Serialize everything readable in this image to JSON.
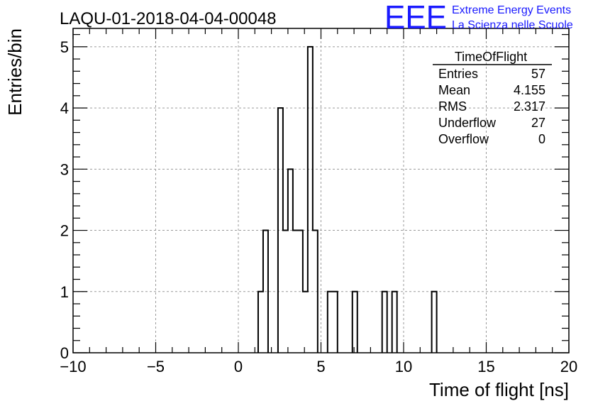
{
  "chart_data": {
    "type": "bar",
    "title": "LAQU-01-2018-04-04-00048",
    "xlabel": "Time of flight [ns]",
    "ylabel": "Entries/bin",
    "xlim": [
      -10,
      20
    ],
    "ylim": [
      0,
      5.3
    ],
    "x_ticks": [
      "−10",
      "−5",
      "0",
      "5",
      "10",
      "15",
      "20"
    ],
    "x_tick_values": [
      -10,
      -5,
      0,
      5,
      10,
      15,
      20
    ],
    "y_ticks": [
      "0",
      "1",
      "2",
      "3",
      "4",
      "5"
    ],
    "y_tick_values": [
      0,
      1,
      2,
      3,
      4,
      5
    ],
    "grid": true,
    "histogram_style": "step",
    "bin_width": 0.3,
    "bins": [
      {
        "x": 1.2,
        "value": 1
      },
      {
        "x": 1.5,
        "value": 2
      },
      {
        "x": 2.4,
        "value": 4
      },
      {
        "x": 2.7,
        "value": 2
      },
      {
        "x": 3.0,
        "value": 3
      },
      {
        "x": 3.3,
        "value": 2
      },
      {
        "x": 3.6,
        "value": 2
      },
      {
        "x": 3.9,
        "value": 1
      },
      {
        "x": 4.2,
        "value": 5
      },
      {
        "x": 4.5,
        "value": 2
      },
      {
        "x": 5.4,
        "value": 1
      },
      {
        "x": 5.7,
        "value": 1
      },
      {
        "x": 6.9,
        "value": 1
      },
      {
        "x": 8.7,
        "value": 1
      },
      {
        "x": 9.3,
        "value": 1
      },
      {
        "x": 11.7,
        "value": 1
      }
    ],
    "stats_box": {
      "title": "TimeOfFlight",
      "rows": [
        {
          "label": "Entries",
          "value": "57"
        },
        {
          "label": "Mean",
          "value": "4.155"
        },
        {
          "label": "RMS",
          "value": "2.317"
        },
        {
          "label": "Underflow",
          "value": "27"
        },
        {
          "label": "Overflow",
          "value": "0"
        }
      ]
    }
  },
  "logo": {
    "mark": "EEE",
    "line1": "Extreme Energy Events",
    "line2": "La Scienza nelle Scuole",
    "color": "#1a1aff"
  }
}
